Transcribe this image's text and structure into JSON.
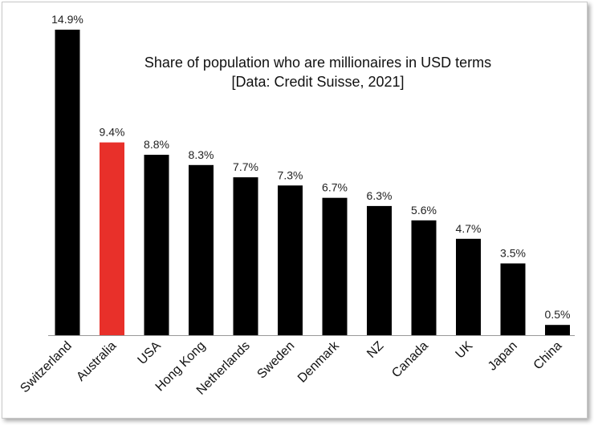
{
  "chart_data": {
    "type": "bar",
    "title": "Share of population who are millionaires in USD terms",
    "subtitle": "[Data: Credit Suisse, 2021]",
    "xlabel": "",
    "ylabel": "",
    "ylim": [
      0,
      15
    ],
    "grid": false,
    "legend": "none",
    "value_suffix": "%",
    "categories": [
      "Switzerland",
      "Australia",
      "USA",
      "Hong Kong",
      "Netherlands",
      "Sweden",
      "Denmark",
      "NZ",
      "Canada",
      "UK",
      "Japan",
      "China"
    ],
    "values": [
      14.9,
      9.4,
      8.8,
      8.3,
      7.7,
      7.3,
      6.7,
      6.3,
      5.6,
      4.7,
      3.5,
      0.5
    ],
    "value_labels": [
      "14.9%",
      "9.4%",
      "8.8%",
      "8.3%",
      "7.7%",
      "7.3%",
      "6.7%",
      "6.3%",
      "5.6%",
      "4.7%",
      "3.5%",
      "0.5%"
    ],
    "colors": {
      "default": "#000000",
      "highlight": "#e8302a",
      "axis": "#999999"
    },
    "highlight_category": "Australia"
  }
}
